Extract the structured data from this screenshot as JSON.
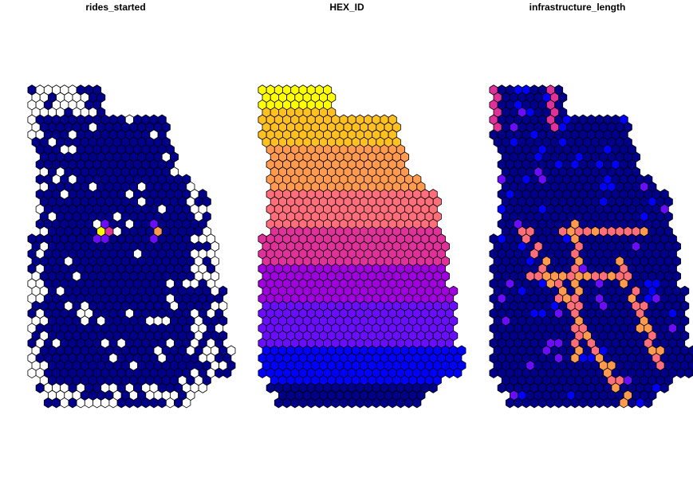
{
  "panels": [
    {
      "title": "rides_started",
      "variable": "rides_started"
    },
    {
      "title": "HEX_ID",
      "variable": "HEX_ID"
    },
    {
      "title": "infrastructure_length",
      "variable": "infrastructure_length"
    }
  ],
  "colors": {
    "background": "#ffffff",
    "hex_stroke": "#000000",
    "na_fill": "#ffffff",
    "palette": [
      "#00008B",
      "#0000FF",
      "#6A0DFF",
      "#A000E0",
      "#E0309A",
      "#FF6E7A",
      "#FF9A4E",
      "#FFC020",
      "#FFFF00"
    ]
  },
  "legend": "none",
  "map_type": "hexagonal choropleth (3 facets)"
}
